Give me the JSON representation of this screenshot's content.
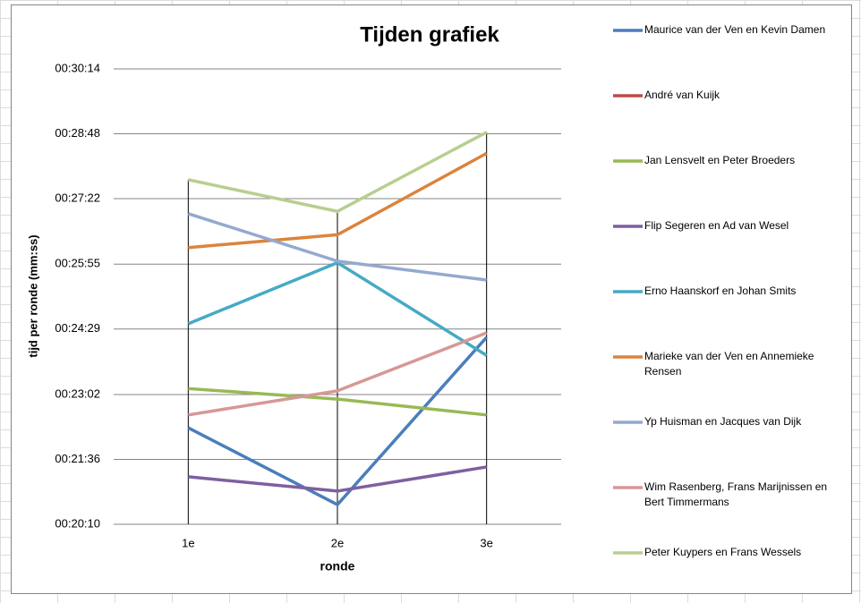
{
  "chart_data": {
    "type": "line",
    "title": "Tijden grafiek",
    "x_label": "ronde",
    "y_label": "tijd per ronde (mm:ss)",
    "categories": [
      "1e",
      "2e",
      "3e"
    ],
    "ylim": [
      1210,
      1814
    ],
    "yticks": [
      {
        "value": 1210,
        "label": "00:20:10"
      },
      {
        "value": 1296,
        "label": "00:21:36"
      },
      {
        "value": 1382,
        "label": "00:23:02"
      },
      {
        "value": 1469,
        "label": "00:24:29"
      },
      {
        "value": 1555,
        "label": "00:25:55"
      },
      {
        "value": 1642,
        "label": "00:27:22"
      },
      {
        "value": 1728,
        "label": "00:28:48"
      },
      {
        "value": 1814,
        "label": "00:30:14"
      }
    ],
    "grid": true,
    "legend": "right",
    "series": [
      {
        "name": "Maurice van der Ven en Kevin Damen",
        "color": "#4a7ebb",
        "values": [
          1338,
          1236,
          1458
        ]
      },
      {
        "name": "André van Kuijk",
        "color": "#be4b48",
        "values": [
          null,
          null,
          null
        ]
      },
      {
        "name": "Jan Lensvelt en Peter Broeders",
        "color": "#98b954",
        "values": [
          1390,
          1376,
          1355
        ]
      },
      {
        "name": "Flip Segeren en Ad van Wesel",
        "color": "#7d60a0",
        "values": [
          1273,
          1254,
          1286
        ]
      },
      {
        "name": "Erno Haanskorf en Johan Smits",
        "color": "#46aac5",
        "values": [
          1476,
          1557,
          1434
        ]
      },
      {
        "name": "Marieke van der Ven en Annemieke Rensen",
        "color": "#db843d",
        "values": [
          1577,
          1594,
          1702
        ]
      },
      {
        "name": "Yp Huisman en Jacques van Dijk",
        "color": "#94a9cf",
        "values": [
          1622,
          1559,
          1534
        ]
      },
      {
        "name": "Wim Rasenberg, Frans Marijnissen en Bert Timmermans",
        "color": "#d69896",
        "values": [
          1355,
          1387,
          1464
        ]
      },
      {
        "name": "Peter Kuypers en Frans Wessels",
        "color": "#b8cf8f",
        "values": [
          1667,
          1625,
          1730
        ]
      }
    ]
  }
}
